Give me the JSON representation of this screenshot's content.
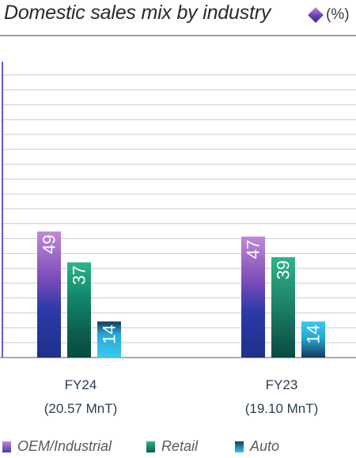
{
  "header": {
    "title": "Domestic sales mix by industry",
    "unit": "(%)"
  },
  "legend": [
    {
      "label": "OEM/Industrial"
    },
    {
      "label": "Retail"
    },
    {
      "label": "Auto"
    }
  ],
  "colors": {
    "oem": [
      "#c08ad8",
      "#7a4ab8",
      "#2a3aa8",
      "#1f2f8a"
    ],
    "retail": [
      "#2fb38c",
      "#128a6a",
      "#0d5c4e",
      "#0a4a40"
    ],
    "auto": [
      "#1a3a5a",
      "#23a9d6",
      "#3cc8ee"
    ]
  },
  "chart_data": {
    "type": "bar",
    "title": "Domestic sales mix by industry",
    "unit": "(%)",
    "categories": [
      "FY24",
      "FY23"
    ],
    "category_sublabels": [
      "(20.57 MnT)",
      "(19.10 MnT)"
    ],
    "series": [
      {
        "name": "OEM/Industrial",
        "values": [
          49,
          47
        ]
      },
      {
        "name": "Retail",
        "values": [
          37,
          39
        ]
      },
      {
        "name": "Auto",
        "values": [
          14,
          14
        ]
      }
    ],
    "ylim": [
      0,
      100
    ],
    "grid": true,
    "legend_position": "bottom"
  }
}
